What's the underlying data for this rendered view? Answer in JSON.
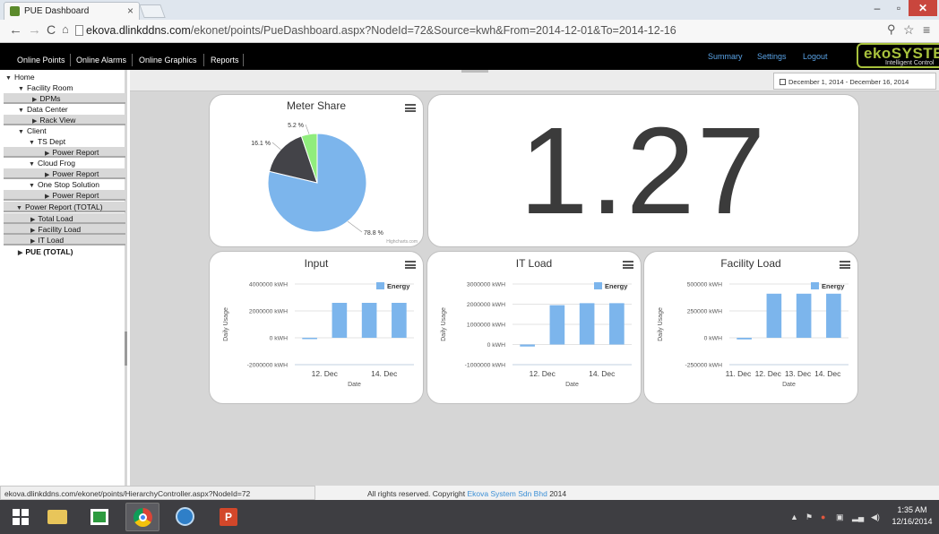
{
  "browser": {
    "tab_title": "PUE Dashboard",
    "tab_close": "×",
    "url_host": "ekova.dlinkddns.com",
    "url_path": "/ekonet/points/PueDashboard.aspx?NodeId=72&Source=kwh&From=2014-12-01&To=2014-12-16",
    "win_minimize": "–",
    "win_restore": "▫",
    "win_close": "✕"
  },
  "appnav": {
    "menu": [
      "Online Points",
      "Online Alarms",
      "Online Graphics",
      "Reports"
    ],
    "right": [
      "Summary",
      "Settings",
      "Logout"
    ],
    "logo": "ekoSYSTEM",
    "logo_sub": "Intelligent Control"
  },
  "tree": [
    {
      "label": "Home",
      "tri": "▼"
    },
    {
      "label": "Facility Room",
      "tri": "▼"
    },
    {
      "label": "DPMs",
      "tri": "▶"
    },
    {
      "label": "Data Center",
      "tri": "▼"
    },
    {
      "label": "Rack View",
      "tri": "▶"
    },
    {
      "label": "Client",
      "tri": "▼"
    },
    {
      "label": "TS Dept",
      "tri": "▼"
    },
    {
      "label": "Power Report",
      "tri": "▶"
    },
    {
      "label": "Cloud Frog",
      "tri": "▼"
    },
    {
      "label": "Power Report",
      "tri": "▶"
    },
    {
      "label": "One Stop Solution",
      "tri": "▼"
    },
    {
      "label": "Power Report",
      "tri": "▶"
    },
    {
      "label": "Power Report (TOTAL)",
      "tri": "▼"
    },
    {
      "label": "Total Load",
      "tri": "▶"
    },
    {
      "label": "Facility Load",
      "tri": "▶"
    },
    {
      "label": "IT Load",
      "tri": "▶"
    },
    {
      "label": "PUE (TOTAL)",
      "tri": "▶"
    }
  ],
  "date_range": "December 1, 2014 - December 16, 2014",
  "pue_value": "1.27",
  "meter_share": {
    "title": "Meter Share",
    "slices": [
      {
        "label": "78.8 %",
        "value": 78.8,
        "color": "#7cb5ec"
      },
      {
        "label": "16.1 %",
        "value": 16.1,
        "color": "#434348"
      },
      {
        "label": "5.2 %",
        "value": 5.2,
        "color": "#90ed7d"
      }
    ],
    "credits": "Highcharts.com"
  },
  "chart_data": [
    {
      "type": "bar",
      "title": "Input",
      "ylabel": "Daily Usage",
      "xlabel": "Date",
      "legend": "Energy",
      "legend_position": "top-right",
      "y_ticks": [
        "4000000 kWH",
        "2000000 kWH",
        "0 kWH",
        "-2000000 kWH"
      ],
      "y_tick_values": [
        4000000,
        2000000,
        0,
        -2000000
      ],
      "ylim": [
        -2000000,
        4000000
      ],
      "x_ticks": [
        "12. Dec",
        "14. Dec"
      ],
      "values": [
        -80000,
        2600000,
        2600000,
        2600000
      ],
      "color": "#7cb5ec"
    },
    {
      "type": "bar",
      "title": "IT Load",
      "ylabel": "Daily Usage",
      "xlabel": "Date",
      "legend": "Energy",
      "legend_position": "top-right",
      "y_ticks": [
        "3000000 kWH",
        "2000000 kWH",
        "1000000 kWH",
        "0 kWH",
        "-1000000 kWH"
      ],
      "y_tick_values": [
        3000000,
        2000000,
        1000000,
        0,
        -1000000
      ],
      "ylim": [
        -1000000,
        3000000
      ],
      "x_ticks": [
        "12. Dec",
        "14. Dec"
      ],
      "values": [
        -100000,
        1950000,
        2050000,
        2050000
      ],
      "color": "#7cb5ec"
    },
    {
      "type": "bar",
      "title": "Facility Load",
      "ylabel": "Daily Usage",
      "xlabel": "Date",
      "legend": "Energy",
      "legend_position": "top-right",
      "y_ticks": [
        "500000 kWH",
        "250000 kWH",
        "0 kWH",
        "-250000 kWH"
      ],
      "y_tick_values": [
        500000,
        250000,
        0,
        -250000
      ],
      "ylim": [
        -250000,
        500000
      ],
      "x_ticks": [
        "11. Dec",
        "12. Dec",
        "13. Dec",
        "14. Dec"
      ],
      "values": [
        -15000,
        410000,
        410000,
        410000
      ],
      "color": "#7cb5ec"
    }
  ],
  "status": {
    "hover_url": "ekova.dlinkddns.com/ekonet/points/HierarchyController.aspx?NodeId=72",
    "copyright_prefix": "All rights reserved. Copyright",
    "copyright_link": "Ekova System Sdn Bhd",
    "copyright_year": "2014"
  },
  "taskbar": {
    "time": "1:35 AM",
    "date": "12/16/2014"
  }
}
